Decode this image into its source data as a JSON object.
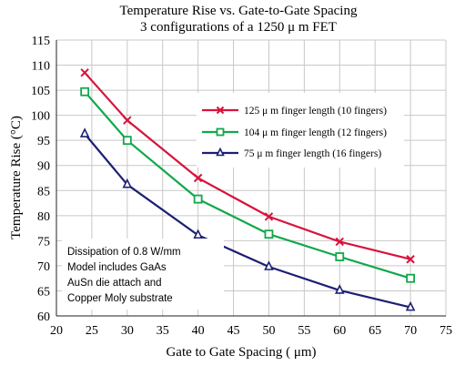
{
  "chart_data": {
    "type": "line",
    "title": "Temperature Rise vs. Gate-to-Gate Spacing",
    "subtitle": "3 configurations of a 1250  μ m FET",
    "xlabel": "Gate to Gate Spacing ( μm)",
    "ylabel": "Temperature Rise (°C)",
    "xlim": [
      20,
      75
    ],
    "ylim": [
      60,
      115
    ],
    "x_ticks": [
      20,
      25,
      30,
      35,
      40,
      45,
      50,
      55,
      60,
      65,
      70,
      75
    ],
    "y_ticks": [
      60,
      65,
      70,
      75,
      80,
      85,
      90,
      95,
      100,
      105,
      110,
      115
    ],
    "grid": true,
    "legend_position": "upper-right",
    "series": [
      {
        "name": "125  μ m finger length (10 fingers)",
        "color": "#d8133c",
        "marker": "x",
        "x": [
          24,
          30,
          40,
          50,
          60,
          70
        ],
        "y": [
          108.5,
          99,
          87.5,
          79.8,
          74.8,
          71.3
        ]
      },
      {
        "name": "104  μ m finger length (12 fingers)",
        "color": "#11a84a",
        "marker": "square",
        "x": [
          24,
          30,
          40,
          50,
          60,
          70
        ],
        "y": [
          104.7,
          95,
          83.3,
          76.3,
          71.8,
          67.5
        ]
      },
      {
        "name": "75  μ m finger length (16 fingers)",
        "color": "#1c1f73",
        "marker": "triangle",
        "x": [
          24,
          30,
          40,
          50,
          60,
          70
        ],
        "y": [
          96.3,
          86.2,
          76.1,
          69.8,
          65.1,
          61.7
        ]
      }
    ],
    "annotation": [
      "Dissipation of 0.8 W/mm",
      "Model includes GaAs",
      "AuSn die attach and",
      "Copper Moly substrate"
    ]
  }
}
